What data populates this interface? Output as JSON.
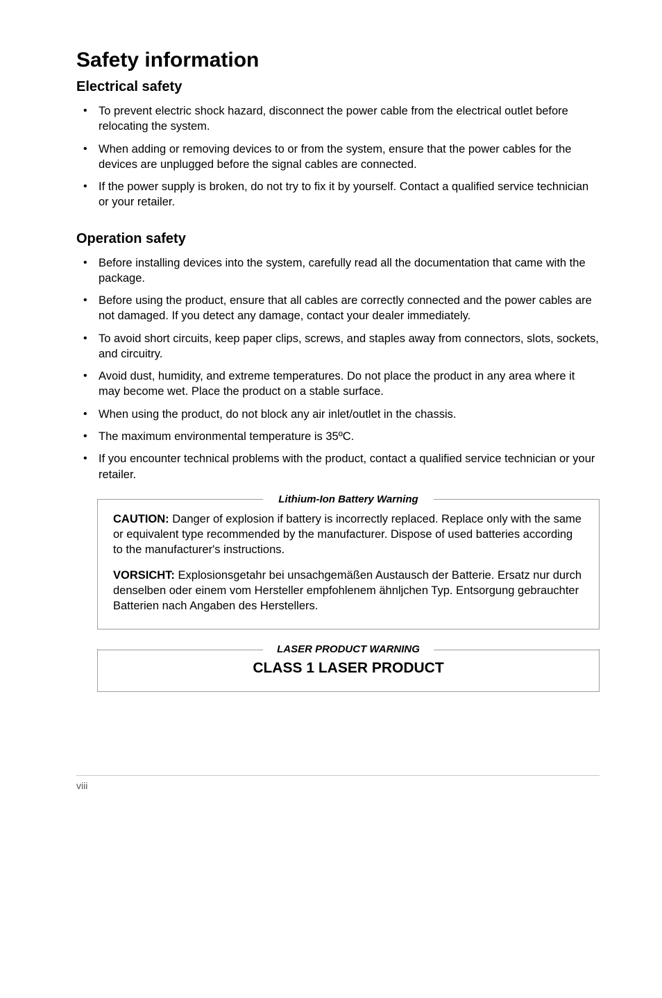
{
  "title": "Safety information",
  "sections": [
    {
      "heading": "Electrical safety",
      "items": [
        "To prevent electric shock hazard, disconnect the power cable from the electrical outlet before relocating the system.",
        "When adding or removing devices to or from the system, ensure that the power cables for the devices are unplugged before the signal cables are connected.",
        "If the power supply is broken, do not try to fix it by yourself. Contact a qualified service technician or your retailer."
      ]
    },
    {
      "heading": "Operation safety",
      "items": [
        "Before installing devices into the system, carefully read all the documentation that came with the package.",
        "Before using the product, ensure that all cables are correctly connected and the power cables are not damaged. If you detect any damage, contact your dealer immediately.",
        "To avoid short circuits, keep paper clips, screws, and staples away from connectors, slots, sockets, and circuitry.",
        "Avoid dust, humidity, and extreme temperatures. Do not place the product in any area where it may become wet. Place the product on a stable surface.",
        "When using the product, do not block any air inlet/outlet in the chassis.",
        "The maximum environmental temperature is 35ºC.",
        "If you encounter technical problems with the product, contact a qualified service technician or your retailer."
      ]
    }
  ],
  "battery_callout": {
    "title": "Lithium-Ion Battery Warning",
    "caution_label": "CAUTION:",
    "caution_text": " Danger of explosion if battery is incorrectly replaced. Replace only with the same or equivalent type recommended by the manufacturer. Dispose of used batteries according to the manufacturer's instructions.",
    "vorsicht_label": "VORSICHT:",
    "vorsicht_text": " Explosionsgetahr bei unsachgemäßen Austausch der Batterie. Ersatz nur durch denselben oder einem vom Hersteller empfohlenem ähnljchen Typ. Entsorgung gebrauchter Batterien nach Angaben des Herstellers."
  },
  "laser_callout": {
    "title": "LASER PRODUCT WARNING",
    "text": "CLASS 1 LASER PRODUCT"
  },
  "page_number": "viii"
}
